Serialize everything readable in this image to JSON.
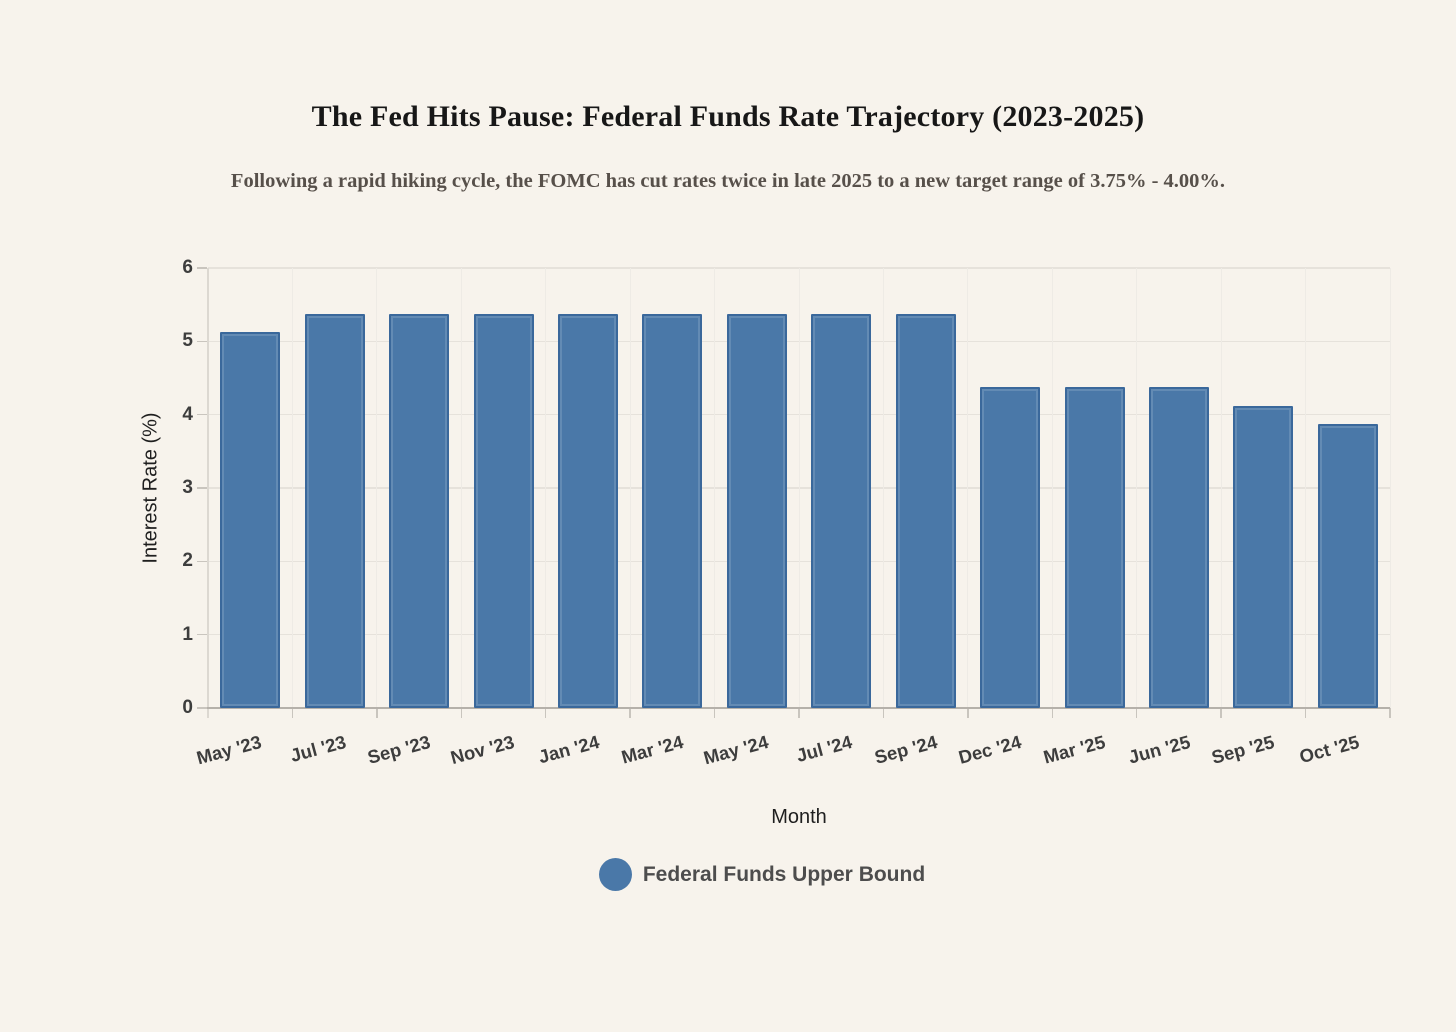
{
  "chart_data": {
    "type": "bar",
    "title": "The Fed Hits Pause: Federal Funds Rate Trajectory (2023-2025)",
    "subtitle": "Following a rapid hiking cycle, the FOMC has cut rates twice in late 2025 to a new target range of 3.75% - 4.00%.",
    "xlabel": "Month",
    "ylabel": "Interest Rate (%)",
    "categories": [
      "May '23",
      "Jul '23",
      "Sep '23",
      "Nov '23",
      "Jan '24",
      "Mar '24",
      "May '24",
      "Jul '24",
      "Sep '24",
      "Dec '24",
      "Mar '25",
      "Jun '25",
      "Sep '25",
      "Oct '25"
    ],
    "values": [
      5.125,
      5.375,
      5.375,
      5.375,
      5.375,
      5.375,
      5.375,
      5.375,
      5.375,
      4.375,
      4.375,
      4.375,
      4.125,
      3.875
    ],
    "series_name": "Federal Funds Upper Bound",
    "ylim": [
      0,
      6
    ],
    "yticks": [
      0,
      1,
      2,
      3,
      4,
      5,
      6
    ],
    "grid": true,
    "legend_position": "bottom",
    "legend": [
      {
        "label": "Federal Funds Upper Bound",
        "color": "#4a78a8"
      }
    ]
  },
  "colors": {
    "background": "#f7f3ec",
    "bar_fill": "#4a78a8",
    "bar_border": "#3a689b",
    "gridline": "#e6e2db",
    "axis_line": "#b5b1aa",
    "tick_label": "#3d3d3d",
    "title_text": "#171717",
    "subtitle_text": "#57504a",
    "legend_text": "#4d4d4d"
  }
}
